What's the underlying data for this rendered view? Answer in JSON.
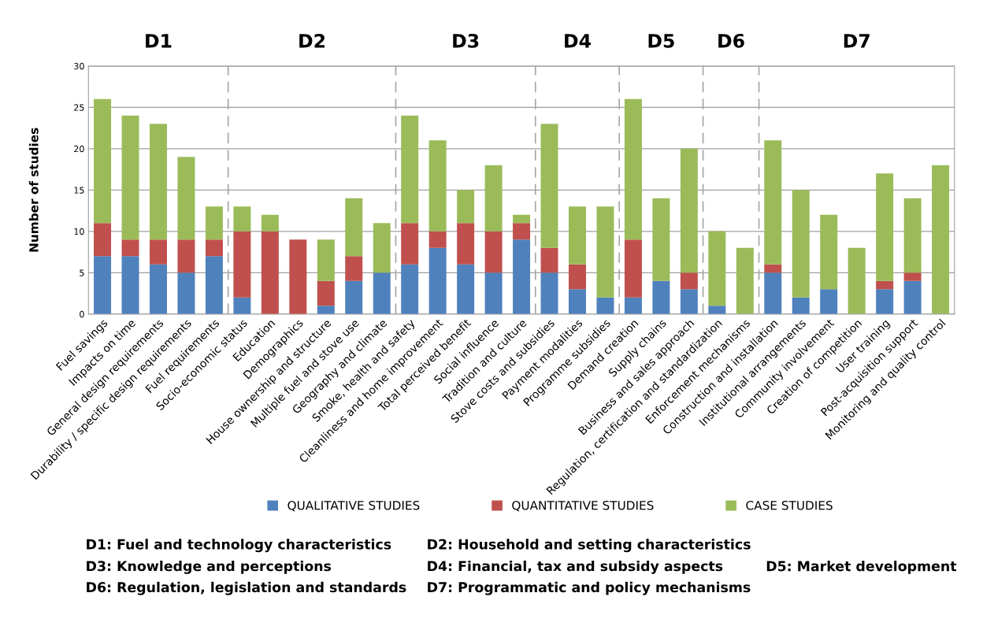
{
  "chart_data": {
    "type": "bar",
    "stacked": true,
    "ylabel": "Number of studies",
    "categories": [
      "Fuel savings",
      "Impacts on time",
      "General design requirements",
      "Durability / specific design requirements",
      "Fuel requirements",
      "Socio-economic status",
      "Education",
      "Demographics",
      "House ownership and structure",
      "Multiple fuel and stove use",
      "Geography and climate",
      "Smoke, health and safety",
      "Cleanliness and home improvement",
      "Total perceived benefit",
      "Social influence",
      "Tradition and culture",
      "Stove costs and subsidies",
      "Payment modalities",
      "Programme subsidies",
      "Demand creation",
      "Supply chains",
      "Business and sales approach",
      "Regulation, certification and standardization",
      "Enforcement mechanisms",
      "Construction and installation",
      "Institutional arrangements",
      "Community involvement",
      "Creation of competition",
      "User training",
      "Post-acquisition support",
      "Monitoring and quality control"
    ],
    "series": [
      {
        "name": "QUALITATIVE STUDIES",
        "color": "#4f81bd",
        "values": [
          7,
          7,
          6,
          5,
          7,
          2,
          0,
          0,
          1,
          4,
          5,
          6,
          8,
          6,
          5,
          9,
          5,
          3,
          2,
          2,
          4,
          3,
          1,
          0,
          5,
          2,
          3,
          0,
          3,
          4,
          0
        ]
      },
      {
        "name": "QUANTITATIVE STUDIES",
        "color": "#c0504d",
        "values": [
          4,
          2,
          3,
          4,
          2,
          8,
          10,
          9,
          3,
          3,
          0,
          5,
          2,
          5,
          5,
          2,
          3,
          3,
          0,
          7,
          0,
          2,
          0,
          0,
          1,
          0,
          0,
          0,
          1,
          1,
          0
        ]
      },
      {
        "name": "CASE STUDIES",
        "color": "#9bbb59",
        "values": [
          15,
          15,
          14,
          10,
          4,
          3,
          2,
          0,
          5,
          7,
          6,
          13,
          11,
          4,
          8,
          1,
          15,
          7,
          11,
          17,
          10,
          15,
          9,
          8,
          15,
          13,
          9,
          8,
          13,
          9,
          18
        ]
      }
    ],
    "ylim": [
      0,
      30
    ],
    "yticks": [
      0,
      5,
      10,
      15,
      20,
      25,
      30
    ],
    "grid": "y",
    "legend": "bottom",
    "annotations": [
      "D1",
      "D2",
      "D3",
      "D4",
      "D5",
      "D6",
      "D7",
      "D1: Fuel and technology characteristics",
      "D2: Household and setting characteristics",
      "D3: Knowledge and perceptions",
      "D4: Financial, tax and subsidy aspects",
      "D5: Market development",
      "D6: Regulation, legislation and standards",
      "D7: Programmatic and policy mechanisms"
    ]
  }
}
